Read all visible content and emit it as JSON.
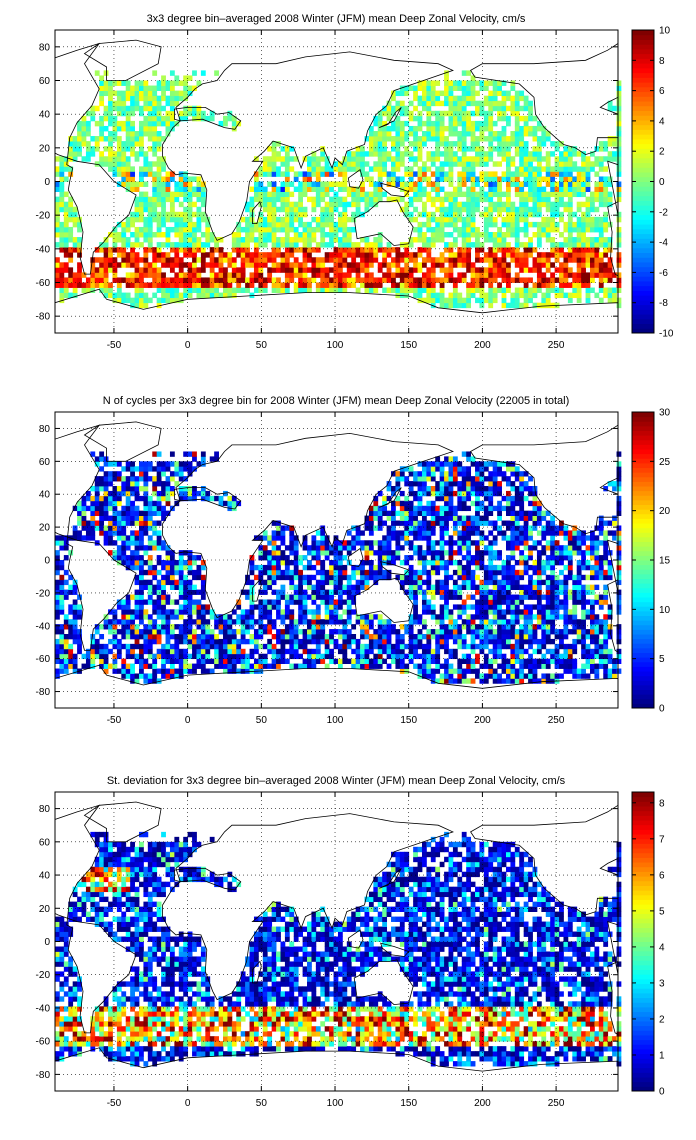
{
  "chart_data": [
    {
      "type": "heatmap",
      "title": "3x3 degree bin–averaged 2008 Winter (JFM) mean Deep Zonal Velocity, cm/s",
      "xlabel": "",
      "ylabel": "",
      "xlim": [
        -90,
        292
      ],
      "ylim": [
        -90,
        90
      ],
      "xticks": [
        "-50",
        "0",
        "50",
        "100",
        "150",
        "200",
        "250"
      ],
      "yticks": [
        "80",
        "60",
        "40",
        "20",
        "0",
        "-20",
        "-40",
        "-60",
        "-80"
      ],
      "grid": true,
      "colorbar": {
        "min": -10,
        "max": 10,
        "ticks": [
          "10",
          "8",
          "6",
          "4",
          "2",
          "0",
          "-2",
          "-4",
          "-6",
          "-8",
          "-10"
        ],
        "colormap": "jet"
      },
      "bin_size_deg": 3
    },
    {
      "type": "heatmap",
      "title": "N of cycles per 3x3 degree bin for 2008 Winter (JFM) mean Deep Zonal Velocity (22005 in total)",
      "xlabel": "",
      "ylabel": "",
      "xlim": [
        -90,
        292
      ],
      "ylim": [
        -90,
        90
      ],
      "xticks": [
        "-50",
        "0",
        "50",
        "100",
        "150",
        "200",
        "250"
      ],
      "yticks": [
        "80",
        "60",
        "40",
        "20",
        "0",
        "-20",
        "-40",
        "-60",
        "-80"
      ],
      "grid": true,
      "colorbar": {
        "min": 0,
        "max": 30,
        "ticks": [
          "30",
          "25",
          "20",
          "15",
          "10",
          "5",
          "0"
        ],
        "colormap": "jet"
      },
      "bin_size_deg": 3
    },
    {
      "type": "heatmap",
      "title": "St. deviation for 3x3 degree bin–averaged 2008 Winter (JFM) mean Deep Zonal Velocity, cm/s",
      "xlabel": "",
      "ylabel": "",
      "xlim": [
        -90,
        292
      ],
      "ylim": [
        -90,
        90
      ],
      "xticks": [
        "-50",
        "0",
        "50",
        "100",
        "150",
        "200",
        "250"
      ],
      "yticks": [
        "80",
        "60",
        "40",
        "20",
        "0",
        "-20",
        "-40",
        "-60",
        "-80"
      ],
      "grid": true,
      "colorbar": {
        "min": 0,
        "max": 8.3,
        "ticks": [
          "8",
          "7",
          "6",
          "5",
          "4",
          "3",
          "2",
          "1",
          "0"
        ],
        "colormap": "jet"
      },
      "bin_size_deg": 3
    }
  ]
}
